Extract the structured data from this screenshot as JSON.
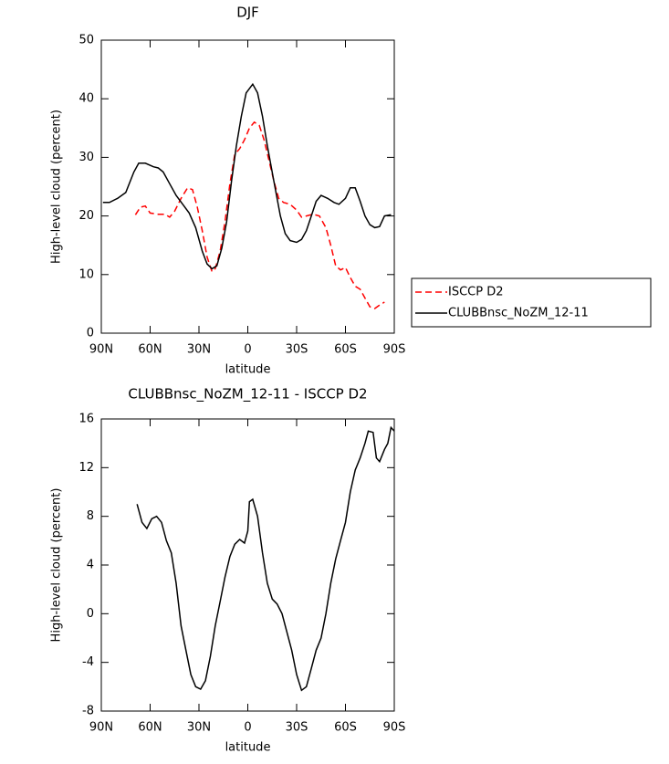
{
  "chart_data": [
    {
      "type": "line",
      "title": "DJF",
      "xlabel": "latitude",
      "ylabel": "High-level cloud (percent)",
      "xlim": [
        90,
        -90
      ],
      "xticks": [
        {
          "value": 90,
          "label": "90N"
        },
        {
          "value": 60,
          "label": "60N"
        },
        {
          "value": 30,
          "label": "30N"
        },
        0,
        {
          "value": -30,
          "label": "30S"
        },
        {
          "value": -60,
          "label": "60S"
        },
        {
          "value": -90,
          "label": "90S"
        }
      ],
      "ylim": [
        0,
        50
      ],
      "yticks": [
        0,
        10,
        20,
        30,
        40,
        50
      ],
      "legend": "right",
      "series": [
        {
          "name": "ISCCP D2",
          "color": "#ff0000",
          "dashed": true,
          "x": [
            69,
            66,
            63,
            60,
            55,
            51,
            48,
            45,
            41,
            37,
            34,
            31,
            28,
            25,
            22,
            20,
            17,
            14,
            11,
            8,
            5,
            2,
            -1,
            -4,
            -7,
            -10,
            -13,
            -16,
            -19,
            -22,
            -26,
            -30,
            -33,
            -36,
            -40,
            -44,
            -48,
            -51,
            -54,
            -57,
            -60,
            -63,
            -66,
            -69,
            -72,
            -75,
            -78,
            -81,
            -84
          ],
          "values": [
            20.2,
            21.5,
            21.7,
            20.5,
            20.3,
            20.3,
            19.8,
            20.8,
            23,
            24.8,
            24.5,
            21.5,
            17.5,
            13,
            10.5,
            11,
            14,
            19,
            25.5,
            30.5,
            31.5,
            33,
            35,
            36,
            35.5,
            33,
            29.5,
            26,
            23,
            22.3,
            22,
            21,
            19.8,
            20,
            20.3,
            20,
            18,
            15,
            11.5,
            10.8,
            11.2,
            9.5,
            8,
            7.5,
            6,
            4.5,
            4.2,
            4.8,
            5.3
          ]
        },
        {
          "name": "CLUBBnsc_NoZM_12-11",
          "color": "#000000",
          "dashed": false,
          "x": [
            89,
            85,
            80,
            75,
            70,
            67,
            63,
            58,
            55,
            52,
            48,
            44,
            40,
            36,
            32,
            28,
            25,
            22,
            19,
            16,
            13,
            10,
            7,
            4,
            1,
            -3,
            -6,
            -9,
            -12,
            -16,
            -20,
            -23,
            -26,
            -30,
            -33,
            -36,
            -39,
            -42,
            -45,
            -49,
            -53,
            -56,
            -60,
            -63,
            -66,
            -69,
            -72,
            -75,
            -78,
            -81,
            -84,
            -88
          ],
          "values": [
            22.3,
            22.3,
            23,
            24,
            27.5,
            29,
            29,
            28.4,
            28.2,
            27.5,
            25.5,
            23.5,
            22,
            20.5,
            18,
            14,
            11.8,
            11,
            11.5,
            14.5,
            19,
            26,
            32,
            37,
            41,
            42.5,
            41,
            37,
            32,
            26,
            20,
            17,
            15.8,
            15.5,
            16,
            17.5,
            20,
            22.5,
            23.5,
            23,
            22.3,
            22,
            23,
            24.8,
            24.8,
            22.5,
            20,
            18.5,
            18,
            18.2,
            20,
            20.2
          ]
        }
      ]
    },
    {
      "type": "line",
      "title": "CLUBBnsc_NoZM_12-11 - ISCCP D2",
      "xlabel": "latitude",
      "ylabel": "High-level cloud (percent)",
      "xlim": [
        90,
        -90
      ],
      "xticks": [
        {
          "value": 90,
          "label": "90N"
        },
        {
          "value": 60,
          "label": "60N"
        },
        {
          "value": 30,
          "label": "30N"
        },
        0,
        {
          "value": -30,
          "label": "30S"
        },
        {
          "value": -60,
          "label": "60S"
        },
        {
          "value": -90,
          "label": "90S"
        }
      ],
      "ylim": [
        -8,
        16
      ],
      "yticks": [
        -8,
        -4,
        0,
        4,
        8,
        12,
        16
      ],
      "series": [
        {
          "color": "#000000",
          "dashed": false,
          "x": [
            68,
            65,
            62,
            59,
            56,
            53,
            50,
            47,
            44,
            41,
            38,
            35,
            32,
            29,
            26,
            23,
            20,
            17,
            14,
            11,
            8,
            5,
            2,
            0,
            -1,
            -3,
            -6,
            -9,
            -12,
            -15,
            -18,
            -21,
            -24,
            -27,
            -30,
            -33,
            -36,
            -39,
            -42,
            -45,
            -48,
            -51,
            -54,
            -57,
            -60,
            -63,
            -66,
            -69,
            -72,
            -74,
            -77,
            -79,
            -81,
            -84,
            -86,
            -88,
            -90
          ],
          "values": [
            9,
            7.5,
            7,
            7.8,
            8,
            7.5,
            6,
            5,
            2.5,
            -1,
            -3,
            -5,
            -6,
            -6.2,
            -5.5,
            -3.5,
            -1,
            1,
            3,
            4.7,
            5.7,
            6.1,
            5.8,
            6.8,
            9.2,
            9.4,
            8,
            5,
            2.5,
            1.2,
            0.8,
            0,
            -1.5,
            -3,
            -5,
            -6.3,
            -6,
            -4.5,
            -3,
            -2,
            0,
            2.5,
            4.5,
            6,
            7.5,
            10,
            11.8,
            12.8,
            14,
            15,
            14.9,
            12.8,
            12.5,
            13.5,
            14,
            15.3,
            15
          ]
        }
      ]
    }
  ]
}
